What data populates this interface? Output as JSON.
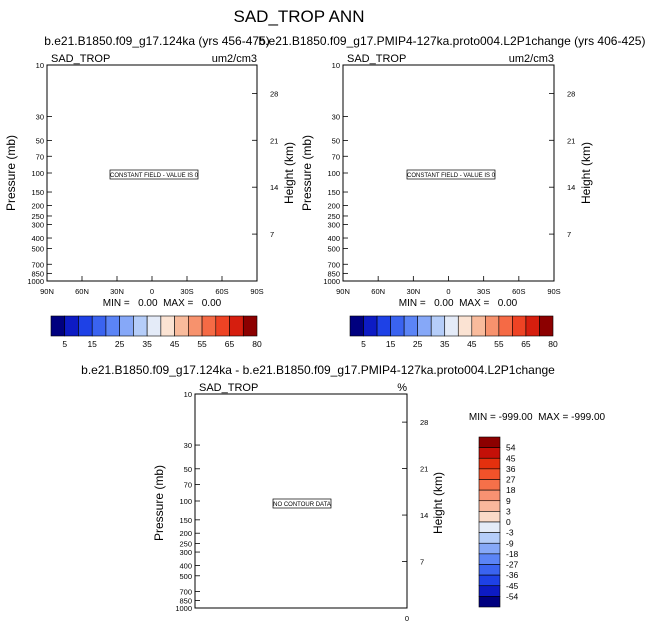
{
  "figure": {
    "title": "SAD_TROP ANN"
  },
  "chart_data": [
    {
      "type": "heatmap",
      "title": "b.e21.B1850.f09_g17.124ka (yrs 456-475)",
      "field_label": "SAD_TROP",
      "units": "um2/cm3",
      "ylabel": "Pressure (mb)",
      "y2label": "Height (km)",
      "x_ticks": [
        "90N",
        "60N",
        "30N",
        "0",
        "30S",
        "60S",
        "90S"
      ],
      "y_ticks": [
        "10",
        "30",
        "50",
        "70",
        "100",
        "150",
        "200",
        "250",
        "300",
        "400",
        "500",
        "700",
        "850",
        "1000"
      ],
      "y2_ticks": [
        "28",
        "21",
        "14",
        "7"
      ],
      "annotation": "CONSTANT FIELD - VALUE IS 0",
      "stats": "MIN =   0.00  MAX =   0.00",
      "colorbar": {
        "labels": [
          "5",
          "15",
          "25",
          "35",
          "45",
          "55",
          "65",
          "80"
        ],
        "colors": [
          "#00007f",
          "#0d1bc4",
          "#1e41e6",
          "#3a63f0",
          "#5b84f6",
          "#86a8f8",
          "#b5cdf9",
          "#e4ebf8",
          "#fbe3d3",
          "#f9bb9c",
          "#f7926d",
          "#f56a45",
          "#ee4324",
          "#d61e0e",
          "#8c0000"
        ]
      }
    },
    {
      "type": "heatmap",
      "title": "b.e21.B1850.f09_g17.PMIP4-127ka.proto004.L2P1change (yrs 406-425)",
      "field_label": "SAD_TROP",
      "units": "um2/cm3",
      "ylabel": "Pressure (mb)",
      "y2label": "Height (km)",
      "x_ticks": [
        "90N",
        "60N",
        "30N",
        "0",
        "30S",
        "60S",
        "90S"
      ],
      "y_ticks": [
        "10",
        "30",
        "50",
        "70",
        "100",
        "150",
        "200",
        "250",
        "300",
        "400",
        "500",
        "700",
        "850",
        "1000"
      ],
      "y2_ticks": [
        "28",
        "21",
        "14",
        "7"
      ],
      "annotation": "CONSTANT FIELD - VALUE IS 0",
      "stats": "MIN =   0.00  MAX =   0.00",
      "colorbar": {
        "labels": [
          "5",
          "15",
          "25",
          "35",
          "45",
          "55",
          "65",
          "80"
        ],
        "colors": [
          "#00007f",
          "#0d1bc4",
          "#1e41e6",
          "#3a63f0",
          "#5b84f6",
          "#86a8f8",
          "#b5cdf9",
          "#e4ebf8",
          "#fbe3d3",
          "#f9bb9c",
          "#f7926d",
          "#f56a45",
          "#ee4324",
          "#d61e0e",
          "#8c0000"
        ]
      }
    },
    {
      "type": "heatmap",
      "title": "b.e21.B1850.f09_g17.124ka - b.e21.B1850.f09_g17.PMIP4-127ka.proto004.L2P1change",
      "field_label": "SAD_TROP",
      "units": "%",
      "ylabel": "Pressure (mb)",
      "y2label": "Height (km)",
      "x_ticks": [
        "0"
      ],
      "y_ticks": [
        "10",
        "30",
        "50",
        "70",
        "100",
        "150",
        "200",
        "250",
        "300",
        "400",
        "500",
        "700",
        "850",
        "1000"
      ],
      "y2_ticks": [
        "28",
        "21",
        "14",
        "7"
      ],
      "annotation": "NO CONTOUR DATA",
      "stats": "MIN = -999.00  MAX = -999.00",
      "colorbar": {
        "labels": [
          "54",
          "45",
          "36",
          "27",
          "18",
          "9",
          "3",
          "0",
          "-3",
          "-9",
          "-18",
          "-27",
          "-36",
          "-45",
          "-54"
        ],
        "colors": [
          "#8c0000",
          "#c41008",
          "#e4300e",
          "#f2522a",
          "#f67049",
          "#f89272",
          "#f9b79c",
          "#fadac8",
          "#e4ebf8",
          "#b5cdf9",
          "#86a8f8",
          "#5b84f6",
          "#3a63f0",
          "#1e41e6",
          "#0d1bc4",
          "#00007f"
        ]
      }
    }
  ]
}
